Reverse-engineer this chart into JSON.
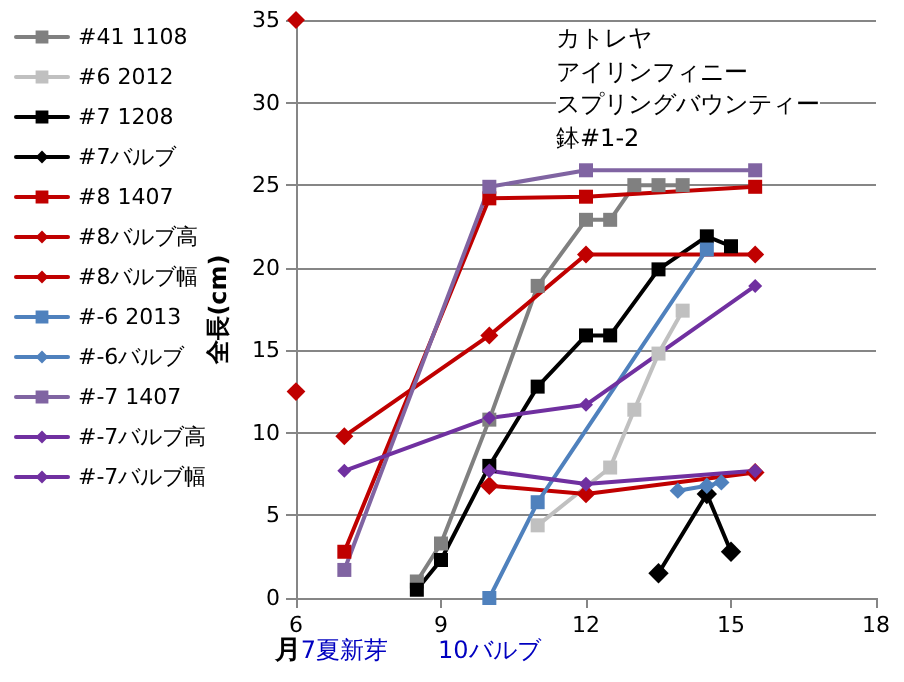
{
  "chart_data": {
    "type": "line",
    "title": "カトレヤ",
    "subtitle": "アイリンフィニー",
    "xlabel": "月",
    "ylabel": "全長(cm)",
    "xlim": [
      6,
      18
    ],
    "xticks": [
      6,
      9,
      12,
      15,
      18
    ],
    "ylim": [
      0,
      35
    ],
    "yticks": [
      0,
      5,
      10,
      15,
      20,
      25,
      30,
      35
    ],
    "grid": "y",
    "legend": "left",
    "annotations": [
      "スプリングバウンティー",
      "鉢#1-2",
      "7夏新芽",
      "10バルブ"
    ],
    "series": [
      {
        "name": "#41 1108",
        "color": "#808080",
        "marker": "square",
        "x": [
          8.5,
          9,
          10,
          11,
          12,
          12.5,
          13,
          13.5,
          14
        ],
        "values": [
          1,
          3.3,
          10.8,
          18.9,
          22.9,
          22.9,
          25,
          25,
          25
        ]
      },
      {
        "name": "#6 2012",
        "color": "#c0c0c0",
        "marker": "square",
        "x": [
          11,
          12.5,
          13,
          13.5,
          14
        ],
        "values": [
          4.4,
          7.9,
          11.4,
          14.8,
          17.4
        ]
      },
      {
        "name": "#7 1208",
        "color": "#000000",
        "marker": "square",
        "x": [
          8.5,
          9,
          10,
          11,
          12,
          12.5,
          13.5,
          14.5,
          15
        ],
        "values": [
          0.5,
          2.3,
          8,
          12.8,
          15.9,
          15.9,
          19.9,
          21.9,
          21.3
        ]
      },
      {
        "name": "#7バルブ",
        "color": "#000000",
        "marker": "diamond",
        "x": [
          13.5,
          14.5,
          15
        ],
        "values": [
          1.5,
          6.3,
          2.8
        ]
      },
      {
        "name": "#8 1407",
        "color": "#c00000",
        "marker": "square",
        "x": [
          7,
          10,
          12,
          15.5
        ],
        "values": [
          2.8,
          24.2,
          24.3,
          24.9
        ]
      },
      {
        "name": "#8バルブ高",
        "color": "#c00000",
        "marker": "diamond",
        "x": [
          6,
          8,
          10,
          12,
          15.5
        ],
        "values": [
          12.5,
          null,
          6.8,
          6.3,
          7.6
        ]
      },
      {
        "name": "#8バルブ幅",
        "color": "#c00000",
        "marker": "diamond",
        "x": [
          6,
          6.5,
          7,
          10,
          12,
          15.5
        ],
        "values": [
          35,
          null,
          9.8,
          15.9,
          20.8,
          20.8
        ]
      },
      {
        "name": "#-6 2013",
        "color": "#4f81bd",
        "marker": "square",
        "x": [
          10,
          11,
          14.5
        ],
        "values": [
          0,
          5.8,
          21.1
        ]
      },
      {
        "name": "#-6バルブ",
        "color": "#4f81bd",
        "marker": "diamond",
        "x": [
          13.9,
          14.5,
          14.8
        ],
        "values": [
          6.5,
          6.8,
          7
        ]
      },
      {
        "name": "#-7 1407",
        "color": "#8064a2",
        "marker": "square",
        "x": [
          7,
          10,
          12,
          15.5
        ],
        "values": [
          1.7,
          24.9,
          25.9,
          25.9
        ]
      },
      {
        "name": "#-7バルブ高",
        "color": "#7030a0",
        "marker": "diamond",
        "x": [
          10,
          12,
          15.5
        ],
        "values": [
          7.7,
          6.9,
          7.7
        ]
      },
      {
        "name": "#-7バルブ幅",
        "color": "#7030a0",
        "marker": "diamond",
        "x": [
          7,
          10,
          12,
          15.5
        ],
        "values": [
          7.7,
          10.9,
          11.7,
          18.9
        ]
      }
    ]
  }
}
